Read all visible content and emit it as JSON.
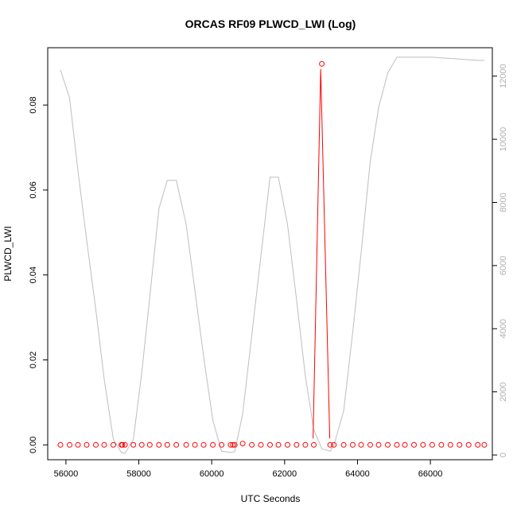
{
  "chart_data": {
    "type": "line",
    "title": "ORCAS RF09 PLWCD_LWI (Log)",
    "xlabel": "UTC Seconds",
    "ylabel": "PLWCD_LWI",
    "xlim": [
      55500,
      67700
    ],
    "ylim": [
      -0.0035,
      0.0935
    ],
    "y2lim": [
      -150,
      12900
    ],
    "x_ticks": [
      56000,
      58000,
      60000,
      62000,
      64000,
      66000
    ],
    "y_ticks": [
      0.0,
      0.02,
      0.04,
      0.06,
      0.08
    ],
    "y2_ticks": [
      0,
      2000,
      4000,
      6000,
      8000,
      10000,
      12000
    ],
    "colors": {
      "primary": "#ff0000",
      "secondary": "#bebebe"
    },
    "series": [
      {
        "axis": "left",
        "style": "points+line",
        "x": [
          55850,
          56100,
          56330,
          56570,
          56820,
          57050,
          57300,
          57520,
          57550,
          57620,
          57850,
          58080,
          58300,
          58550,
          58780,
          59030,
          59300,
          59540,
          59780,
          60030,
          60270,
          60520,
          60580,
          60630,
          60850,
          61100,
          61350,
          61600,
          61830,
          62080,
          62330,
          62570,
          62800,
          63020,
          63250,
          63350,
          63620,
          63870,
          64100,
          64350,
          64580,
          64830,
          65080,
          65300,
          65550,
          65800,
          66050,
          66300,
          66550,
          66800,
          67050,
          67300,
          67480
        ],
        "y": [
          0,
          0,
          0,
          0,
          0,
          0,
          0,
          0,
          0,
          0,
          0,
          0,
          0,
          0,
          0,
          0,
          0,
          0,
          0,
          0,
          0,
          0,
          0,
          0,
          0.0003,
          0,
          0,
          0,
          0,
          0,
          0,
          0,
          0,
          0.0897,
          0,
          0,
          0,
          0,
          0,
          0,
          0,
          0,
          0,
          0,
          0,
          0,
          0,
          0,
          0,
          0,
          0,
          0,
          0
        ]
      },
      {
        "axis": "left",
        "style": "line",
        "x": [
          62780,
          62990,
          63240
        ],
        "y": [
          0.0015,
          0.0885,
          0.0015
        ]
      },
      {
        "axis": "right",
        "style": "line",
        "x": [
          55850,
          56100,
          56330,
          56570,
          56820,
          57050,
          57300,
          57520,
          57620,
          57850,
          58080,
          58300,
          58550,
          58780,
          59030,
          59300,
          59540,
          59780,
          60030,
          60270,
          60520,
          60630,
          60850,
          61100,
          61350,
          61600,
          61830,
          62080,
          62330,
          62570,
          62800,
          63020,
          63250,
          63350,
          63620,
          63870,
          64100,
          64350,
          64580,
          64830,
          65080,
          65300,
          65550,
          65800,
          66050,
          66300,
          66550,
          66800,
          67050,
          67300,
          67480
        ],
        "y": [
          12200,
          11300,
          9000,
          6800,
          4600,
          2400,
          500,
          80,
          50,
          500,
          2600,
          5000,
          7800,
          8700,
          8700,
          7300,
          5200,
          3100,
          1100,
          120,
          80,
          110,
          1300,
          3800,
          6300,
          8800,
          8800,
          7300,
          4900,
          2500,
          800,
          200,
          120,
          300,
          1400,
          3900,
          6400,
          9300,
          11000,
          12100,
          12600,
          12600,
          12600,
          12600,
          12600,
          12580,
          12560,
          12540,
          12520,
          12500,
          12500
        ]
      }
    ]
  }
}
